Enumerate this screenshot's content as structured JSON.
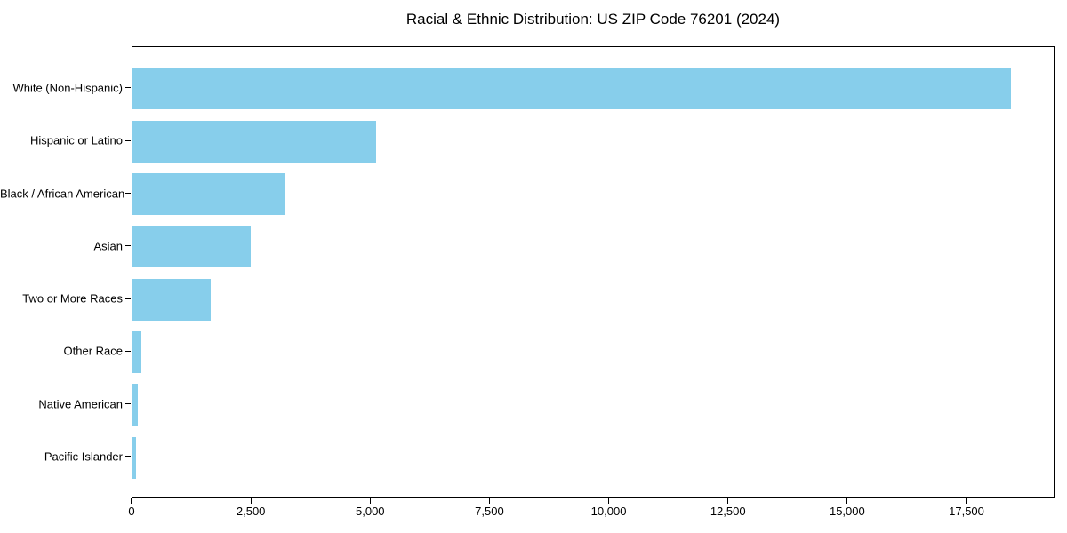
{
  "figure": {
    "background": "#ffffff"
  },
  "chart_data": {
    "type": "bar",
    "orientation": "horizontal",
    "title": "Racial & Ethnic Distribution: US ZIP Code 76201 (2024)",
    "categories": [
      "White (Non-Hispanic)",
      "Hispanic or Latino",
      "Black / African American",
      "Asian",
      "Two or More Races",
      "Other Race",
      "Native American",
      "Pacific Islander"
    ],
    "values": [
      18420,
      5110,
      3190,
      2480,
      1640,
      180,
      110,
      80
    ],
    "xlabel": "",
    "ylabel": "",
    "xlim": [
      0,
      19345
    ],
    "xticks": [
      0,
      2500,
      5000,
      7500,
      10000,
      12500,
      15000,
      17500
    ],
    "xtick_labels": [
      "0",
      "2,500",
      "5,000",
      "7,500",
      "10,000",
      "12,500",
      "15,000",
      "17,500"
    ],
    "bar_color": "#87CEEB",
    "spine_color": "#000000",
    "grid": false,
    "legend": null
  }
}
